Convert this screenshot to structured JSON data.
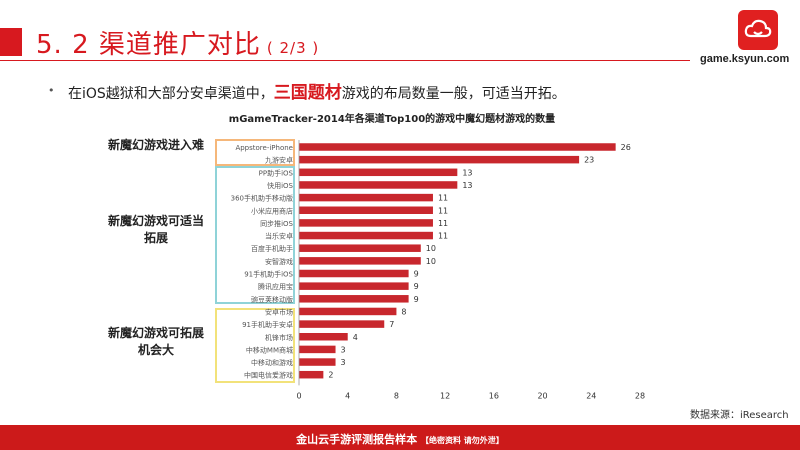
{
  "header": {
    "title": "5. 2 渠道推广对比",
    "subtitle": "( 2/3 )",
    "logo_url": "game.ksyun.com"
  },
  "bullet": {
    "prefix": "在iOS越狱和大部分安卓渠道中，",
    "highlight": "三国题材",
    "suffix": "游戏的布局数量一般，可适当开拓。"
  },
  "groups": [
    {
      "label": "新魔幻游戏进入难",
      "color": "#f5b77a"
    },
    {
      "label": "新魔幻游戏可适当拓展",
      "color": "#8fd3d8"
    },
    {
      "label": "新魔幻游戏可拓展机会大",
      "color": "#f2e27a"
    }
  ],
  "source": "数据来源：iResearch",
  "footer": {
    "main": "金山云手游评测报告样本",
    "note": "【绝密资料 请勿外泄】"
  },
  "colors": {
    "bar": "#c8272d",
    "accent": "#d7191f"
  },
  "chart_data": {
    "type": "bar",
    "orientation": "horizontal",
    "title": "mGameTracker-2014年各渠道Top100的游戏中魔幻题材游戏的数量",
    "categories": [
      "Appstore-iPhone",
      "九游安卓",
      "PP助手iOS",
      "快用iOS",
      "360手机助手移动版",
      "小米应用商店",
      "同步推iOS",
      "当乐安卓",
      "百度手机助手",
      "安智游戏",
      "91手机助手iOS",
      "腾讯应用宝",
      "豌豆荚移动版",
      "安卓市场",
      "91手机助手安卓",
      "机锋市场",
      "中移动MM商城",
      "中移动和游戏",
      "中国电信爱游戏"
    ],
    "values": [
      26,
      23,
      13,
      13,
      11,
      11,
      11,
      11,
      10,
      10,
      9,
      9,
      9,
      8,
      7,
      4,
      3,
      3,
      2
    ],
    "xlim": [
      0,
      28
    ],
    "xticks": [
      0,
      4,
      8,
      12,
      16,
      20,
      24,
      28
    ],
    "group_ranges": [
      [
        0,
        1
      ],
      [
        2,
        12
      ],
      [
        13,
        18
      ]
    ]
  }
}
